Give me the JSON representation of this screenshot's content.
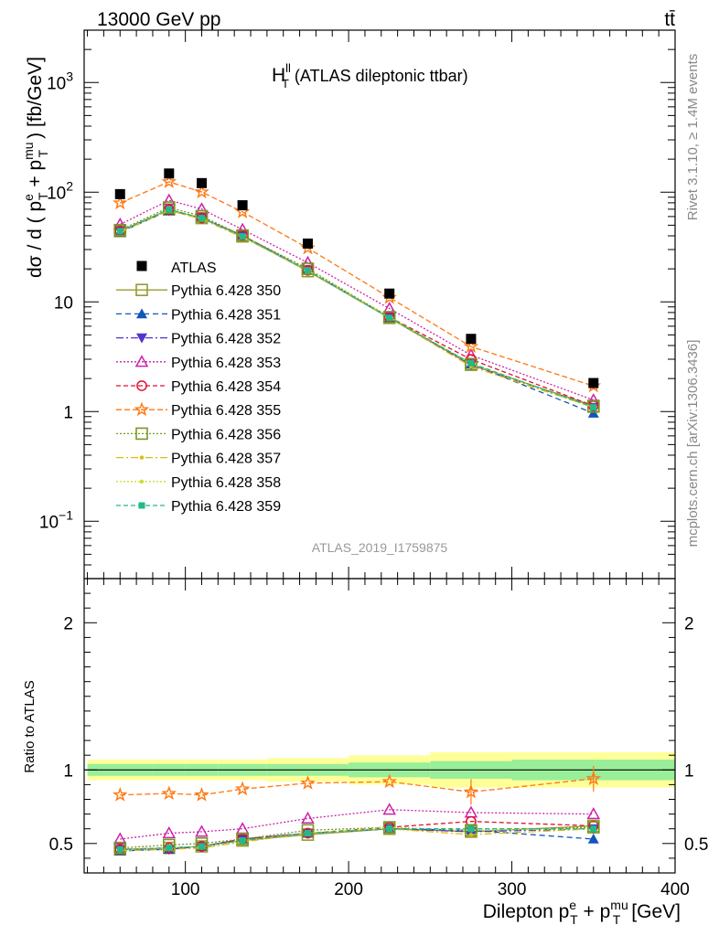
{
  "header": {
    "left": "13000 GeV pp",
    "right": "tt̄",
    "side_top": "Rivet 3.1.10, ≥ 1.4M events",
    "side_bottom": "mcplots.cern.ch [arXiv:1306.3436]"
  },
  "chart_data": {
    "type": "line",
    "title": "(ATLAS dileptonic ttbar)",
    "title_symbol": "H",
    "title_sup": "ll",
    "title_sub": "T",
    "analysis_label": "ATLAS_2019_I1759875",
    "xlabel": "Dilepton p",
    "xlabel_unit": "[GeV]",
    "ylabel": "dσ / d ( p",
    "ylabel_unit": ") [fb/GeV]",
    "ratio_ylabel": "Ratio to ATLAS",
    "xlim": [
      38,
      400
    ],
    "ylim_top": [
      0.03,
      3000
    ],
    "yscale_top": "log",
    "ylim_ratio": [
      0.3,
      2.3
    ],
    "x_ticks": [
      "100",
      "200",
      "300",
      "400"
    ],
    "x_tick_values": [
      100,
      200,
      300,
      400
    ],
    "top_y_ticks": [
      "10^-1",
      "1",
      "10",
      "10^2",
      "10^3"
    ],
    "ratio_y_ticks": [
      "0.5",
      "1",
      "2"
    ],
    "bin_edges": [
      40,
      80,
      100,
      120,
      150,
      200,
      250,
      300,
      400
    ],
    "x": [
      60,
      90,
      110,
      135,
      175,
      225,
      275,
      350
    ],
    "data": {
      "name": "ATLAS",
      "values": [
        96,
        148,
        121,
        76,
        34,
        11.9,
        4.6,
        1.82
      ],
      "band_green": [
        0.04,
        0.04,
        0.04,
        0.04,
        0.04,
        0.05,
        0.06,
        0.07
      ],
      "band_yellow": [
        0.07,
        0.07,
        0.07,
        0.07,
        0.08,
        0.1,
        0.12,
        0.12
      ]
    },
    "series": [
      {
        "name": "Pythia 6.428 350",
        "color": "#999933",
        "marker": "open-square",
        "dash": "",
        "ratio": [
          0.46,
          0.47,
          0.48,
          0.52,
          0.56,
          0.6,
          0.58,
          0.62
        ]
      },
      {
        "name": "Pythia 6.428 351",
        "color": "#1155bb",
        "marker": "triangle-up",
        "dash": "6,4",
        "ratio": [
          0.45,
          0.46,
          0.48,
          0.53,
          0.57,
          0.6,
          0.59,
          0.53
        ]
      },
      {
        "name": "Pythia 6.428 352",
        "color": "#5533cc",
        "marker": "triangle-down",
        "dash": "8,3,2,3",
        "ratio": [
          0.46,
          0.46,
          0.48,
          0.53,
          0.57,
          0.6,
          0.58,
          0.6
        ]
      },
      {
        "name": "Pythia 6.428 353",
        "color": "#cc22aa",
        "marker": "open-triangle",
        "dash": "2,2",
        "ratio": [
          0.53,
          0.57,
          0.58,
          0.6,
          0.67,
          0.73,
          0.71,
          0.7
        ]
      },
      {
        "name": "Pythia 6.428 354",
        "color": "#dd1133",
        "marker": "open-circle",
        "dash": "5,3",
        "ratio": [
          0.46,
          0.47,
          0.48,
          0.53,
          0.57,
          0.61,
          0.65,
          0.62
        ]
      },
      {
        "name": "Pythia 6.428 355",
        "color": "#ff7711",
        "marker": "open-star",
        "dash": "6,3",
        "ratio": [
          0.83,
          0.84,
          0.83,
          0.87,
          0.91,
          0.92,
          0.85,
          0.94
        ]
      },
      {
        "name": "Pythia 6.428 356",
        "color": "#779922",
        "marker": "open-square",
        "dash": "2,2",
        "ratio": [
          0.47,
          0.49,
          0.5,
          0.53,
          0.59,
          0.61,
          0.59,
          0.61
        ]
      },
      {
        "name": "Pythia 6.428 357",
        "color": "#ddbb11",
        "marker": "dot",
        "dash": "8,3,2,3",
        "ratio": [
          0.45,
          0.46,
          0.47,
          0.51,
          0.57,
          0.6,
          0.56,
          0.6
        ]
      },
      {
        "name": "Pythia 6.428 358",
        "color": "#ccdd33",
        "marker": "dot",
        "dash": "2,2",
        "ratio": [
          0.46,
          0.47,
          0.48,
          0.52,
          0.57,
          0.61,
          0.59,
          0.6
        ]
      },
      {
        "name": "Pythia 6.428 359",
        "color": "#22bb88",
        "marker": "filled-square",
        "dash": "5,3",
        "ratio": [
          0.46,
          0.47,
          0.48,
          0.52,
          0.57,
          0.6,
          0.6,
          0.6
        ]
      }
    ]
  }
}
